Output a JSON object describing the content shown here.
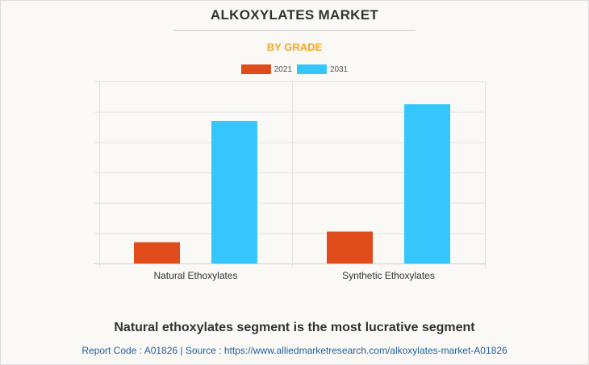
{
  "header": {
    "title": "ALKOXYLATES MARKET",
    "subtitle": "BY GRADE"
  },
  "colors": {
    "series_2021": "#e04c1c",
    "series_2031": "#35c6fb",
    "subtitle": "#f5a623",
    "source_link": "#1f5f9e"
  },
  "chart_data": {
    "type": "bar",
    "title": "ALKOXYLATES MARKET",
    "subtitle": "BY GRADE",
    "categories": [
      "Natural Ethoxylates",
      "Synthetic Ethoxylates"
    ],
    "series": [
      {
        "name": "2021",
        "values": [
          0.7,
          1.05
        ]
      },
      {
        "name": "2031",
        "values": [
          4.7,
          5.25
        ]
      }
    ],
    "xlabel": "",
    "ylabel": "",
    "ylim": [
      0,
      6
    ],
    "y_tick_values": [
      0,
      1,
      2,
      3,
      4,
      5,
      6
    ],
    "y_tick_labels_shown": false,
    "grid": true,
    "legend_position": "top-center"
  },
  "footer": {
    "headline": "Natural ethoxylates segment is the most lucrative segment",
    "source": "Report Code : A01826  |  Source : https://www.alliedmarketresearch.com/alkoxylates-market-A01826"
  }
}
